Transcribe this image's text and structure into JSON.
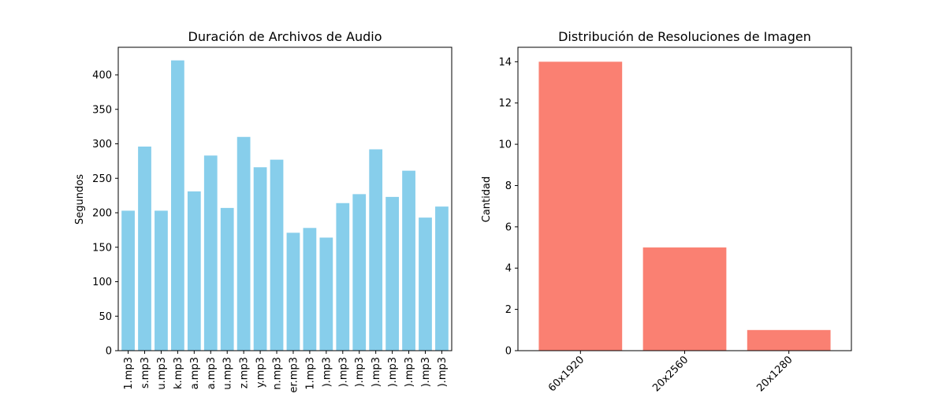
{
  "chart_data": [
    {
      "type": "bar",
      "title": "Duración de Archivos de Audio",
      "xlabel": "",
      "ylabel": "Segundos",
      "ylim": [
        0,
        440
      ],
      "yticks": [
        0,
        50,
        100,
        150,
        200,
        250,
        300,
        350,
        400
      ],
      "grid": false,
      "color": "#87ceeb",
      "categories": [
        "1.mp3",
        "s.mp3",
        "u.mp3",
        "k.mp3",
        "a.mp3",
        "a.mp3",
        "u.mp3",
        "z.mp3",
        "y.mp3",
        "n.mp3",
        "er.mp3",
        "1.mp3",
        ").mp3",
        ").mp3",
        ").mp3",
        ").mp3",
        ").mp3",
        ").mp3",
        ").mp3",
        ").mp3"
      ],
      "values": [
        203,
        296,
        203,
        421,
        231,
        283,
        207,
        310,
        266,
        277,
        171,
        178,
        164,
        214,
        227,
        292,
        223,
        261,
        193,
        209
      ],
      "x_tick_rotation": 90
    },
    {
      "type": "bar",
      "title": "Distribución de Resoluciones de Imagen",
      "xlabel": "",
      "ylabel": "Cantidad",
      "ylim": [
        0,
        14.7
      ],
      "yticks": [
        0,
        2,
        4,
        6,
        8,
        10,
        12,
        14
      ],
      "grid": false,
      "color": "#fa8072",
      "categories": [
        "60x1920",
        "20x2560",
        "20x1280"
      ],
      "values": [
        14,
        5,
        1
      ],
      "x_tick_rotation": 45
    }
  ]
}
